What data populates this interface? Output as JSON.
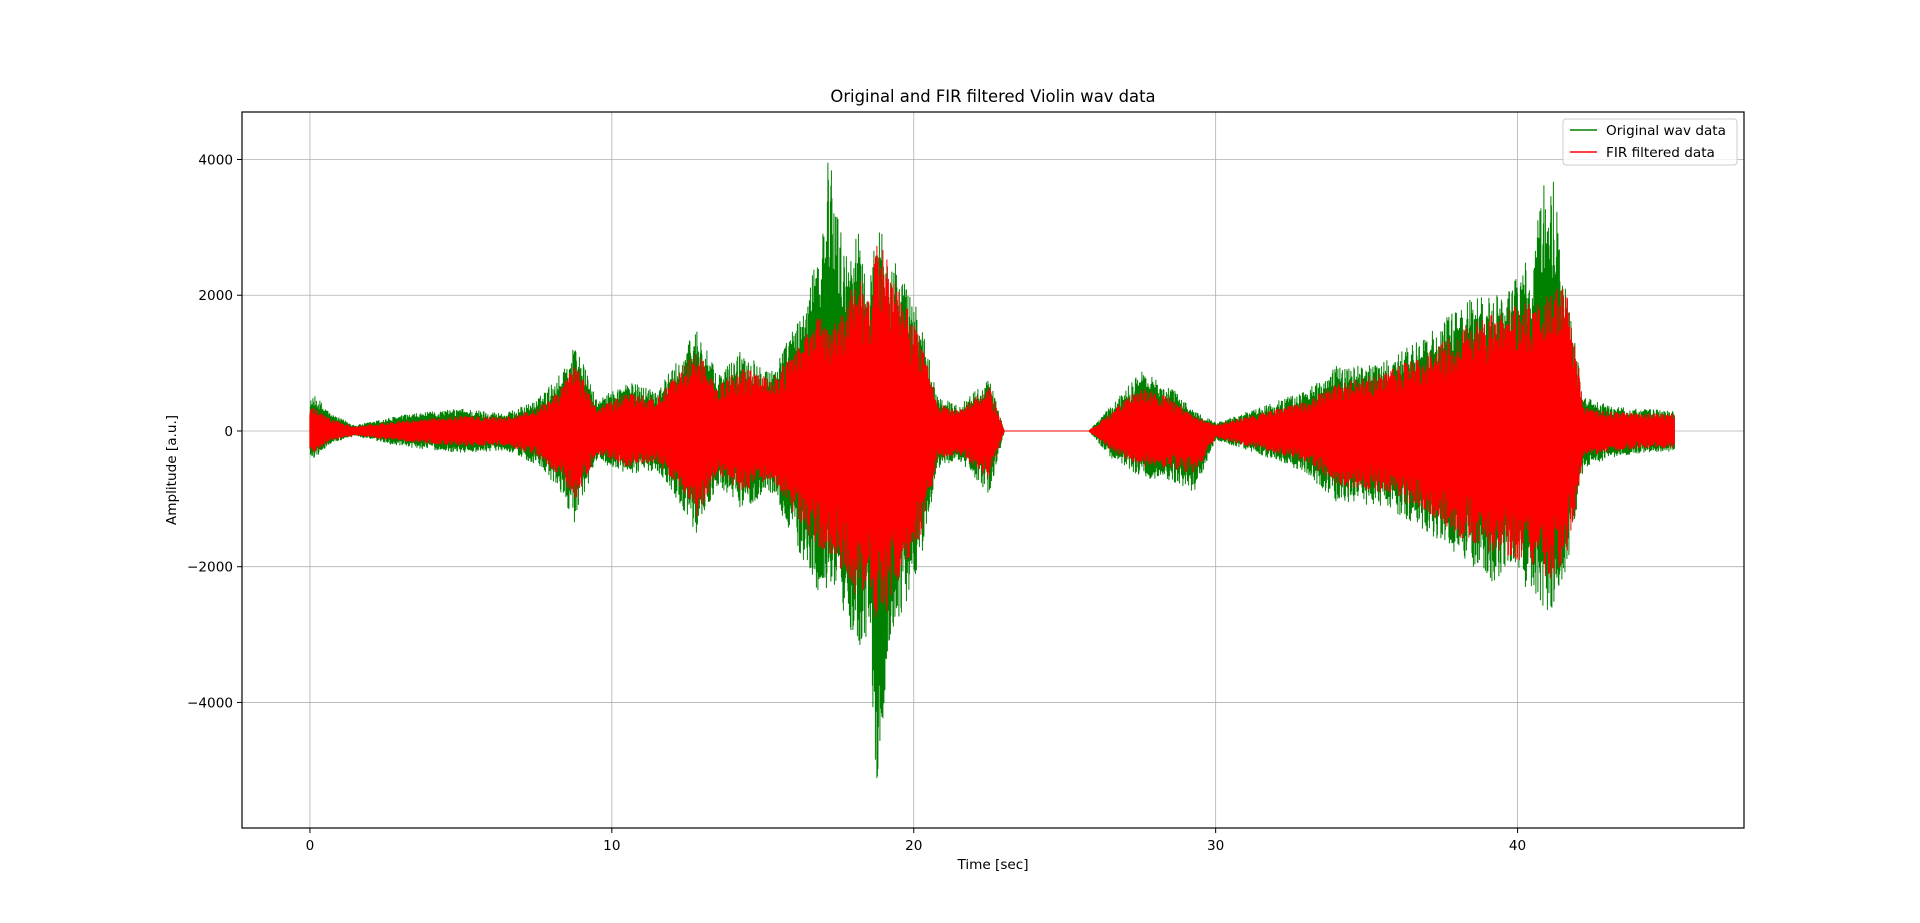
{
  "chart_data": {
    "type": "line",
    "title": "Original and FIR filtered Violin wav data",
    "xlabel": "Time [sec]",
    "ylabel": "Amplitude [a.u.]",
    "xlim": [
      -2.25,
      47.5
    ],
    "ylim": [
      -5850,
      4700
    ],
    "xticks": [
      0,
      10,
      20,
      30,
      40
    ],
    "yticks": [
      -4000,
      -2000,
      0,
      2000,
      4000
    ],
    "xtick_labels": [
      "0",
      "10",
      "20",
      "30",
      "40"
    ],
    "ytick_labels": [
      "−4000",
      "−2000",
      "0",
      "2000",
      "4000"
    ],
    "grid": true,
    "legend_position": "top-right",
    "series": [
      {
        "name": "Original wav data",
        "color": "#008000",
        "x_range": [
          0,
          45.2
        ],
        "envelope": {
          "x": [
            0,
            0.2,
            0.7,
            1.5,
            3,
            5,
            6.5,
            7.5,
            8.3,
            8.8,
            9.5,
            10.5,
            11.5,
            12.3,
            12.8,
            13.5,
            14.3,
            15.3,
            16.3,
            16.9,
            17.2,
            17.7,
            18.2,
            18.5,
            18.8,
            19.2,
            19.6,
            20.2,
            20.8,
            21.5,
            22.5,
            23,
            25.8,
            26.5,
            27.5,
            28.5,
            29.3,
            30,
            31.5,
            33,
            34,
            35.5,
            37,
            38.2,
            39,
            39.8,
            40.5,
            41.1,
            41.6,
            42.2,
            43,
            44,
            45.2
          ],
          "upper": [
            450,
            520,
            250,
            80,
            230,
            330,
            260,
            450,
            850,
            1300,
            450,
            720,
            620,
            1100,
            1550,
            820,
            1200,
            900,
            1750,
            2700,
            4200,
            2600,
            3000,
            2000,
            3150,
            2700,
            2300,
            1700,
            500,
            380,
            780,
            0,
            0,
            350,
            880,
            650,
            300,
            120,
            350,
            600,
            950,
            1000,
            1400,
            1900,
            2000,
            2150,
            2650,
            4200,
            2100,
            500,
            380,
            320,
            300
          ],
          "lower": [
            -420,
            -380,
            -180,
            -70,
            -230,
            -320,
            -280,
            -500,
            -900,
            -1380,
            -420,
            -650,
            -570,
            -1100,
            -1500,
            -800,
            -1150,
            -900,
            -1900,
            -2450,
            -2300,
            -2750,
            -3200,
            -3000,
            -5400,
            -3200,
            -2700,
            -2000,
            -550,
            -420,
            -950,
            0,
            0,
            -380,
            -680,
            -750,
            -900,
            -130,
            -350,
            -620,
            -1050,
            -1100,
            -1480,
            -1900,
            -2250,
            -2100,
            -2400,
            -2700,
            -2150,
            -550,
            -400,
            -330,
            -300
          ]
        }
      },
      {
        "name": "FIR filtered data",
        "color": "#ff0000",
        "x_range": [
          0,
          45.2
        ],
        "envelope": {
          "x": [
            0,
            0.2,
            0.7,
            1.5,
            3,
            5,
            6.5,
            7.5,
            8.3,
            8.8,
            9.5,
            10.5,
            11.5,
            12.3,
            12.8,
            13.5,
            14.3,
            15.3,
            16.3,
            16.9,
            17.2,
            17.7,
            18.2,
            18.5,
            18.8,
            19.2,
            19.6,
            20.2,
            20.8,
            21.5,
            22.5,
            23,
            25.8,
            26.5,
            27.5,
            28.5,
            29.3,
            30,
            31.5,
            33,
            34,
            35.5,
            37,
            38.2,
            39,
            39.8,
            40.5,
            41.1,
            41.6,
            42.2,
            43,
            44,
            45.2
          ],
          "upper": [
            350,
            320,
            170,
            60,
            150,
            220,
            200,
            320,
            650,
            1000,
            330,
            560,
            480,
            900,
            1250,
            650,
            950,
            750,
            1350,
            1700,
            1450,
            1900,
            2300,
            1900,
            2800,
            2500,
            2000,
            1400,
            400,
            300,
            650,
            0,
            0,
            260,
            650,
            480,
            220,
            90,
            270,
            430,
            700,
            850,
            1150,
            1550,
            1700,
            1850,
            1900,
            2000,
            2250,
            350,
            280,
            260,
            250
          ],
          "lower": [
            -330,
            -300,
            -140,
            -60,
            -150,
            -220,
            -210,
            -360,
            -680,
            -1050,
            -330,
            -520,
            -450,
            -850,
            -1300,
            -620,
            -900,
            -720,
            -1400,
            -1750,
            -1800,
            -2100,
            -2500,
            -2400,
            -2850,
            -2600,
            -2200,
            -1600,
            -420,
            -330,
            -700,
            0,
            0,
            -270,
            -520,
            -550,
            -650,
            -100,
            -270,
            -450,
            -800,
            -900,
            -1200,
            -1600,
            -1800,
            -1900,
            -2000,
            -2200,
            -1950,
            -380,
            -300,
            -260,
            -250
          ]
        }
      }
    ]
  }
}
